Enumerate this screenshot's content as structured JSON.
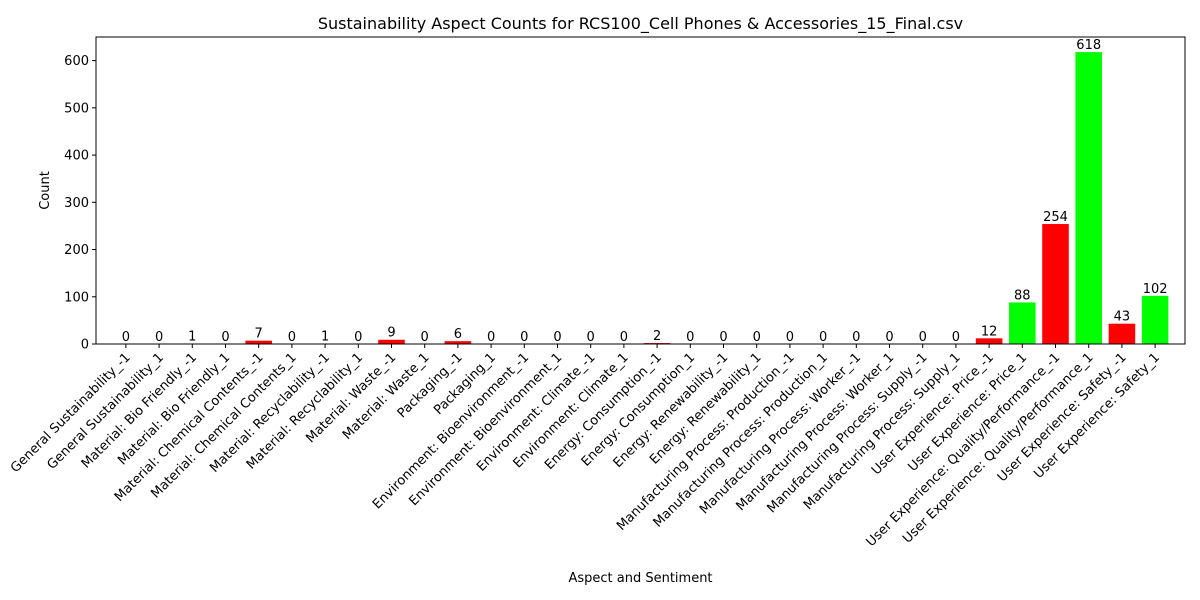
{
  "chart_data": {
    "type": "bar",
    "title": "Sustainability Aspect Counts for RCS100_Cell Phones & Accessories_15_Final.csv",
    "xlabel": "Aspect and Sentiment",
    "ylabel": "Count",
    "ylim": [
      0,
      650
    ],
    "yticks": [
      0,
      100,
      200,
      300,
      400,
      500,
      600
    ],
    "grid": false,
    "colors": {
      "negative": "#ff0000",
      "positive": "#00ff00"
    },
    "categories": [
      "General Sustainability_-1",
      "General Sustainability_1",
      "Material: Bio Friendly_-1",
      "Material: Bio Friendly_1",
      "Material: Chemical Contents_-1",
      "Material: Chemical Contents_1",
      "Material: Recyclability_-1",
      "Material: Recyclability_1",
      "Material: Waste_-1",
      "Material: Waste_1",
      "Packaging_-1",
      "Packaging_1",
      "Environment: Bioenvironment_-1",
      "Environment: Bioenvironment_1",
      "Environment: Climate_-1",
      "Environment: Climate_1",
      "Energy: Consumption_-1",
      "Energy: Consumption_1",
      "Energy: Renewability_-1",
      "Energy: Renewability_1",
      "Manufacturing Process: Production_-1",
      "Manufacturing Process: Production_1",
      "Manufacturing Process: Worker_-1",
      "Manufacturing Process: Worker_1",
      "Manufacturing Process: Supply_-1",
      "Manufacturing Process: Supply_1",
      "User Experience: Price_-1",
      "User Experience: Price_1",
      "User Experience: Quality/Performance_-1",
      "User Experience: Quality/Performance_1",
      "User Experience: Safety_-1",
      "User Experience: Safety_1"
    ],
    "values": [
      0,
      0,
      1,
      0,
      7,
      0,
      1,
      0,
      9,
      0,
      6,
      0,
      0,
      0,
      0,
      0,
      2,
      0,
      0,
      0,
      0,
      0,
      0,
      0,
      0,
      0,
      12,
      88,
      254,
      618,
      43,
      102
    ]
  }
}
